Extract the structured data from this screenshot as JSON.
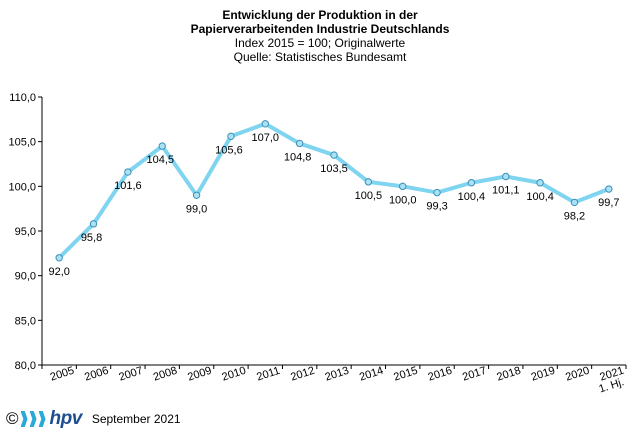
{
  "title_line1": "Entwicklung der Produktion  in der",
  "title_line2": "Papierverarbeitenden Industrie Deutschlands",
  "subtitle_line1": "Index  2015  = 100;  Originalwerte",
  "subtitle_line2": "Quelle:  Statistisches Bundesamt",
  "footer": {
    "copyright": "©",
    "brand": "hpv",
    "date": "September 2021"
  },
  "colors": {
    "line": "#7fd4f0",
    "marker_fill": "#a9e2f5",
    "marker_stroke": "#3e8fb8",
    "axis": "#000000"
  },
  "chart_data": {
    "type": "line",
    "categories": [
      "2005",
      "2006",
      "2007",
      "2008",
      "2009",
      "2010",
      "2011",
      "2012",
      "2013",
      "2014",
      "2015",
      "2016",
      "2017",
      "2018",
      "2019",
      "2020",
      "1. Hj. 2021"
    ],
    "values": [
      92.0,
      95.8,
      101.6,
      104.5,
      99.0,
      105.6,
      107.0,
      104.8,
      103.5,
      100.5,
      100.0,
      99.3,
      100.4,
      101.1,
      100.4,
      98.2,
      99.7
    ],
    "data_labels": [
      "92,0",
      "95,8",
      "101,6",
      "104,5",
      "99,0",
      "105,6",
      "107,0",
      "104,8",
      "103,5",
      "100,5",
      "100,0",
      "99,3",
      "100,4",
      "101,1",
      "100,4",
      "98,2",
      "99,7"
    ],
    "y_ticks": [
      "80,0",
      "85,0",
      "90,0",
      "95,0",
      "100,0",
      "105,0",
      "110,0"
    ],
    "ylim": [
      80,
      110
    ],
    "grid": false,
    "legend": false
  }
}
